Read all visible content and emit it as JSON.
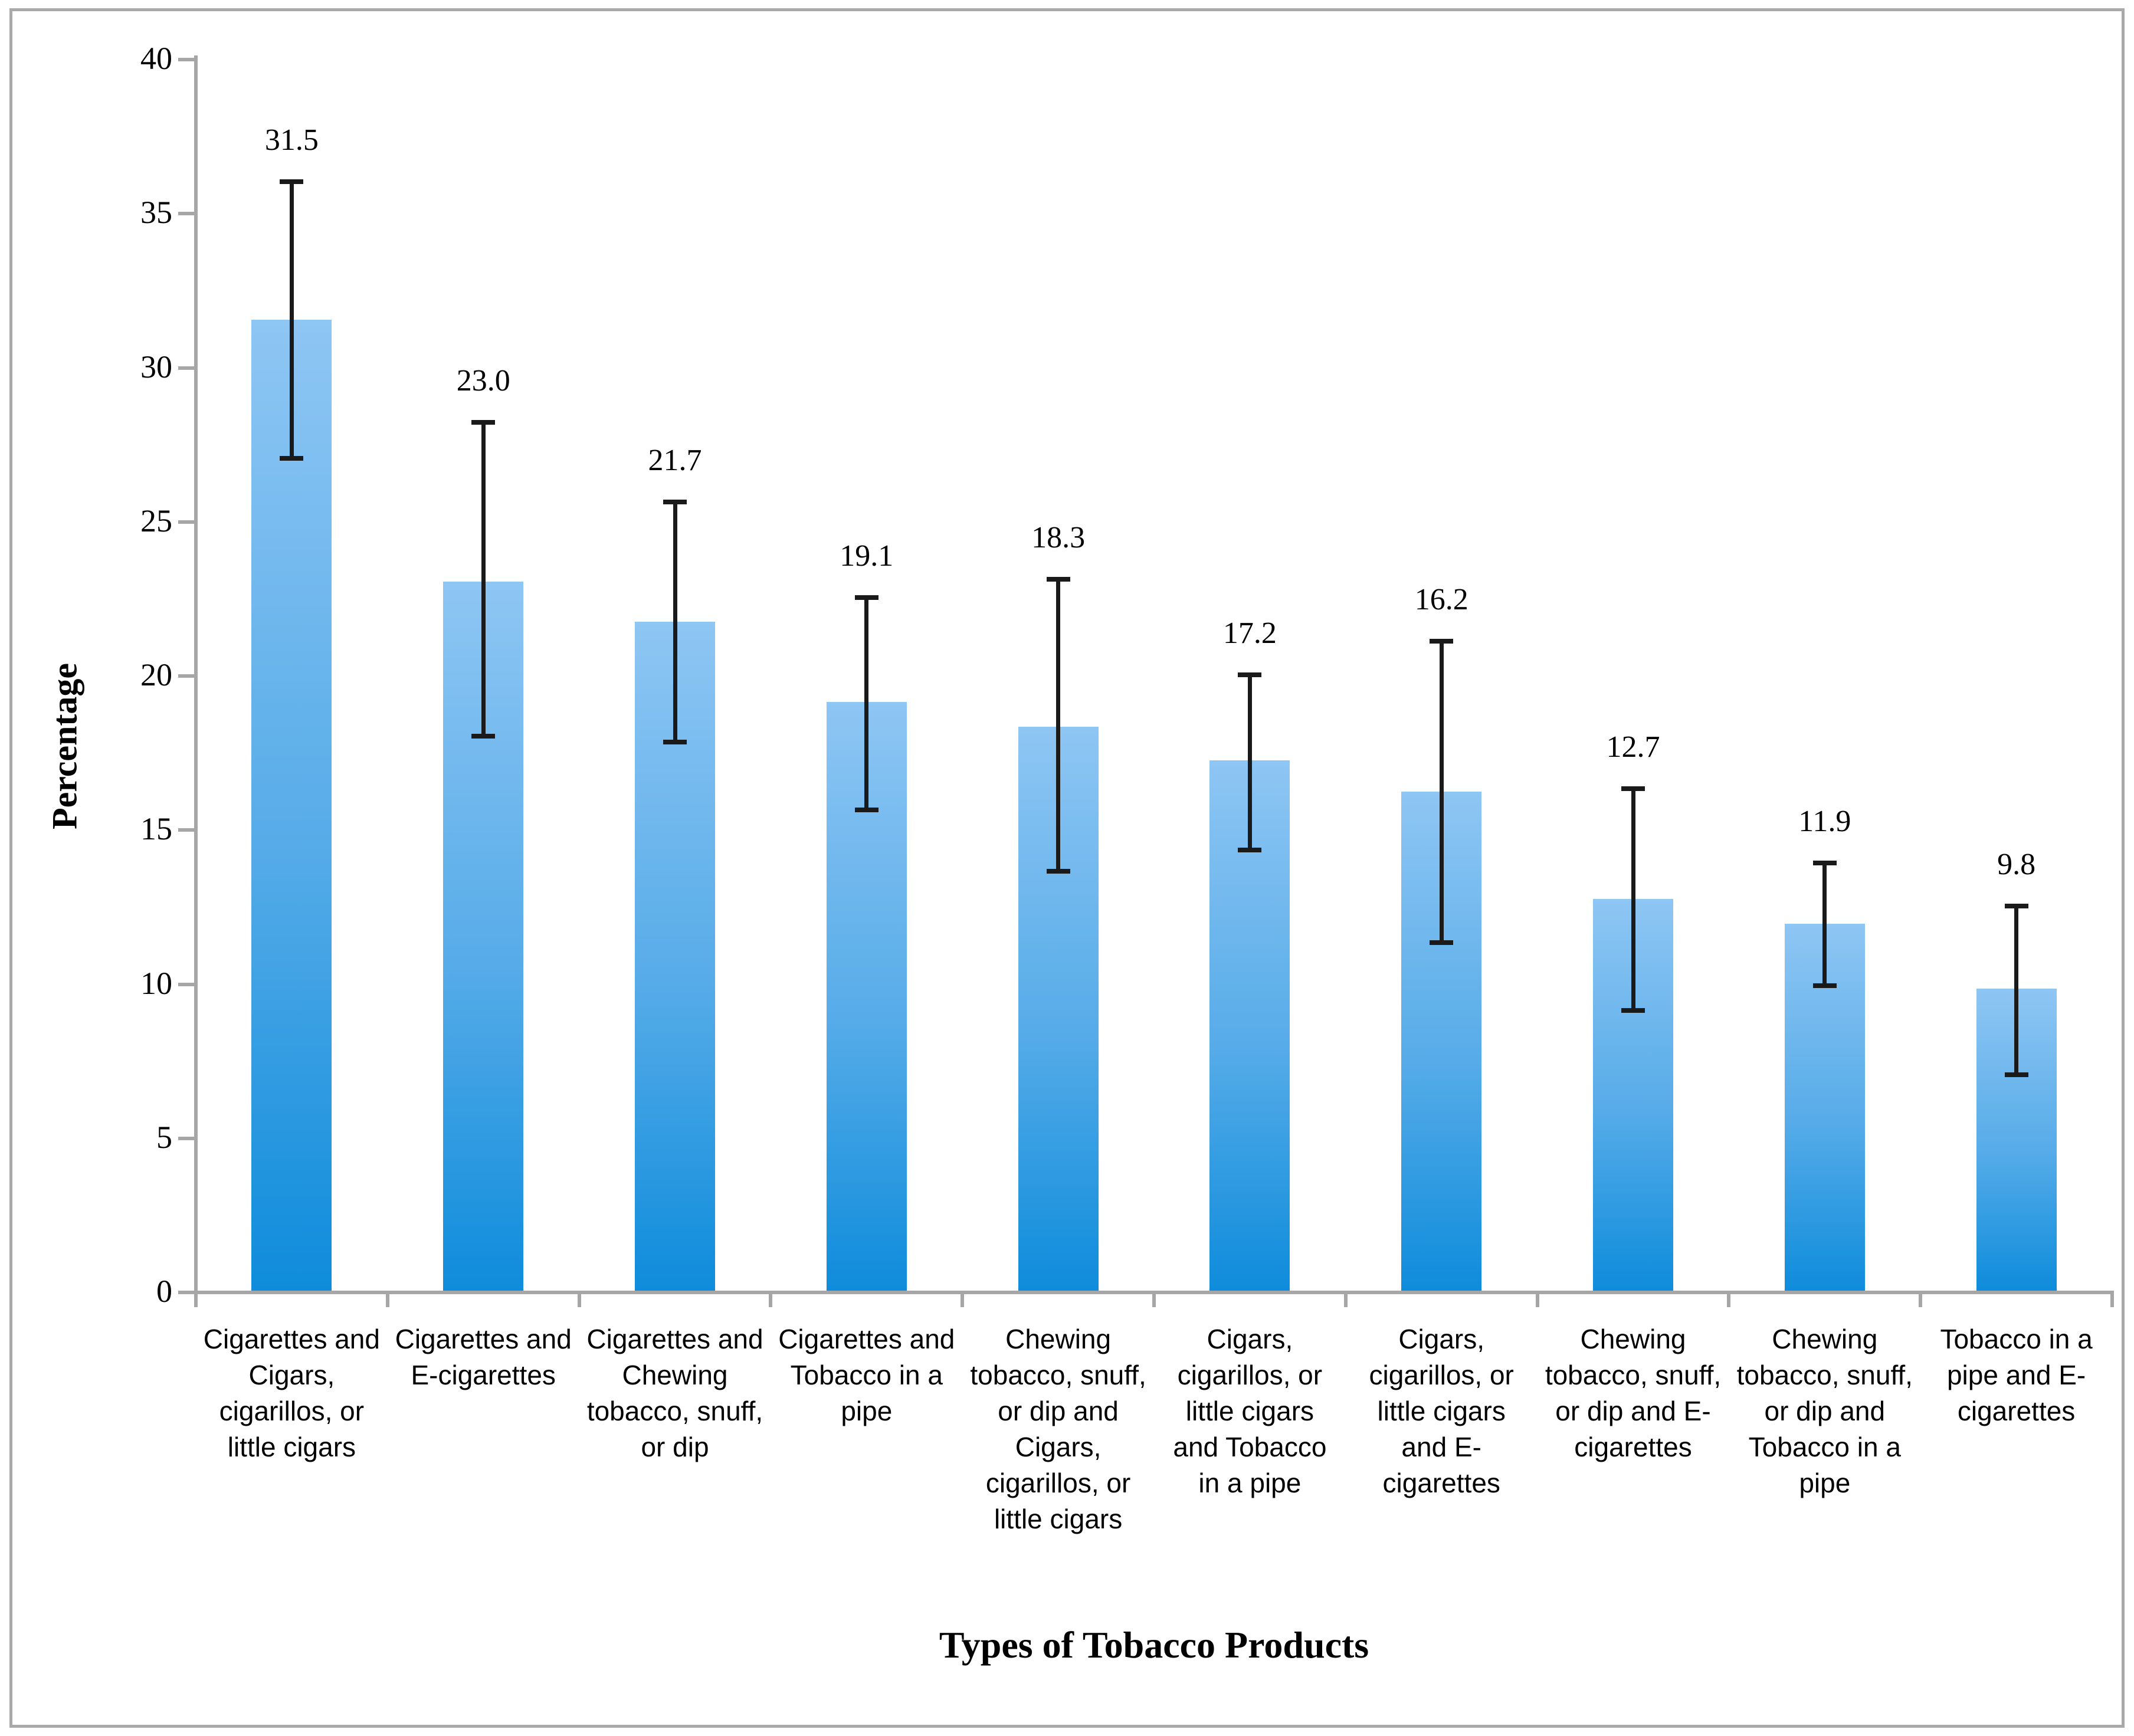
{
  "figure": {
    "x_axis_title": "Types of Tobacco Products",
    "y_axis_title": "Percentage"
  },
  "chart_data": {
    "type": "bar",
    "title": "",
    "xlabel": "Types of Tobacco Products",
    "ylabel": "Percentage",
    "ylim": [
      0,
      40
    ],
    "ytick_step": 5,
    "yticks": [
      0,
      5,
      10,
      15,
      20,
      25,
      30,
      35,
      40
    ],
    "grid": false,
    "legend": null,
    "bar_count": 10,
    "categories": [
      "Cigarettes and Cigars, cigarillos, or little cigars",
      "Cigarettes and E-cigarettes",
      "Cigarettes and Chewing tobacco, snuff, or dip",
      "Cigarettes and Tobacco in a pipe",
      "Chewing tobacco, snuff, or dip and Cigars, cigarillos, or little cigars",
      "Cigars, cigarillos, or little cigars and Tobacco in a pipe",
      "Cigars, cigarillos, or little cigars and E-cigarettes",
      "Chewing tobacco, snuff, or dip and E-cigarettes",
      "Chewing tobacco, snuff, or dip and Tobacco in a pipe",
      "Tobacco in a pipe and E-cigarettes"
    ],
    "category_label_lines": [
      [
        "Cigarettes and",
        "Cigars,",
        "cigarillos, or",
        "little cigars"
      ],
      [
        "Cigarettes and",
        "E-cigarettes"
      ],
      [
        "Cigarettes and",
        "Chewing",
        "tobacco, snuff,",
        "or dip"
      ],
      [
        "Cigarettes and",
        "Tobacco in a",
        "pipe"
      ],
      [
        "Chewing",
        "tobacco, snuff,",
        "or dip and",
        "Cigars,",
        "cigarillos, or",
        "little cigars"
      ],
      [
        "Cigars,",
        "cigarillos, or",
        "little cigars",
        "and Tobacco",
        "in a pipe"
      ],
      [
        "Cigars,",
        "cigarillos, or",
        "little cigars",
        "and E-",
        "cigarettes"
      ],
      [
        "Chewing",
        "tobacco, snuff,",
        "or dip and E-",
        "cigarettes"
      ],
      [
        "Chewing",
        "tobacco, snuff,",
        "or dip and",
        "Tobacco in a",
        "pipe"
      ],
      [
        "Tobacco in a",
        "pipe and E-",
        "cigarettes"
      ]
    ],
    "values": [
      31.5,
      23.0,
      21.7,
      19.1,
      18.3,
      17.2,
      16.2,
      12.7,
      11.9,
      9.8
    ],
    "data_labels": [
      "31.5",
      "23.0",
      "21.7",
      "19.1",
      "18.3",
      "17.2",
      "16.2",
      "12.7",
      "11.9",
      "9.8"
    ],
    "error_bars": {
      "kind": "confidence-interval caps read from plot",
      "low": [
        27.0,
        18.0,
        17.8,
        15.6,
        13.6,
        14.3,
        11.3,
        9.1,
        9.9,
        7.0
      ],
      "high": [
        36.0,
        28.2,
        25.6,
        22.5,
        23.1,
        20.0,
        21.1,
        16.3,
        13.9,
        12.5
      ]
    },
    "colors": {
      "bar_gradient_top": "#8ec6f4",
      "bar_gradient_bottom": "#0e8cdb",
      "axis_line": "#a6a6a6",
      "error_bar": "#1a1a1a",
      "text": "#000000",
      "frame_border": "#a9a9a9",
      "background": "#ffffff"
    }
  }
}
